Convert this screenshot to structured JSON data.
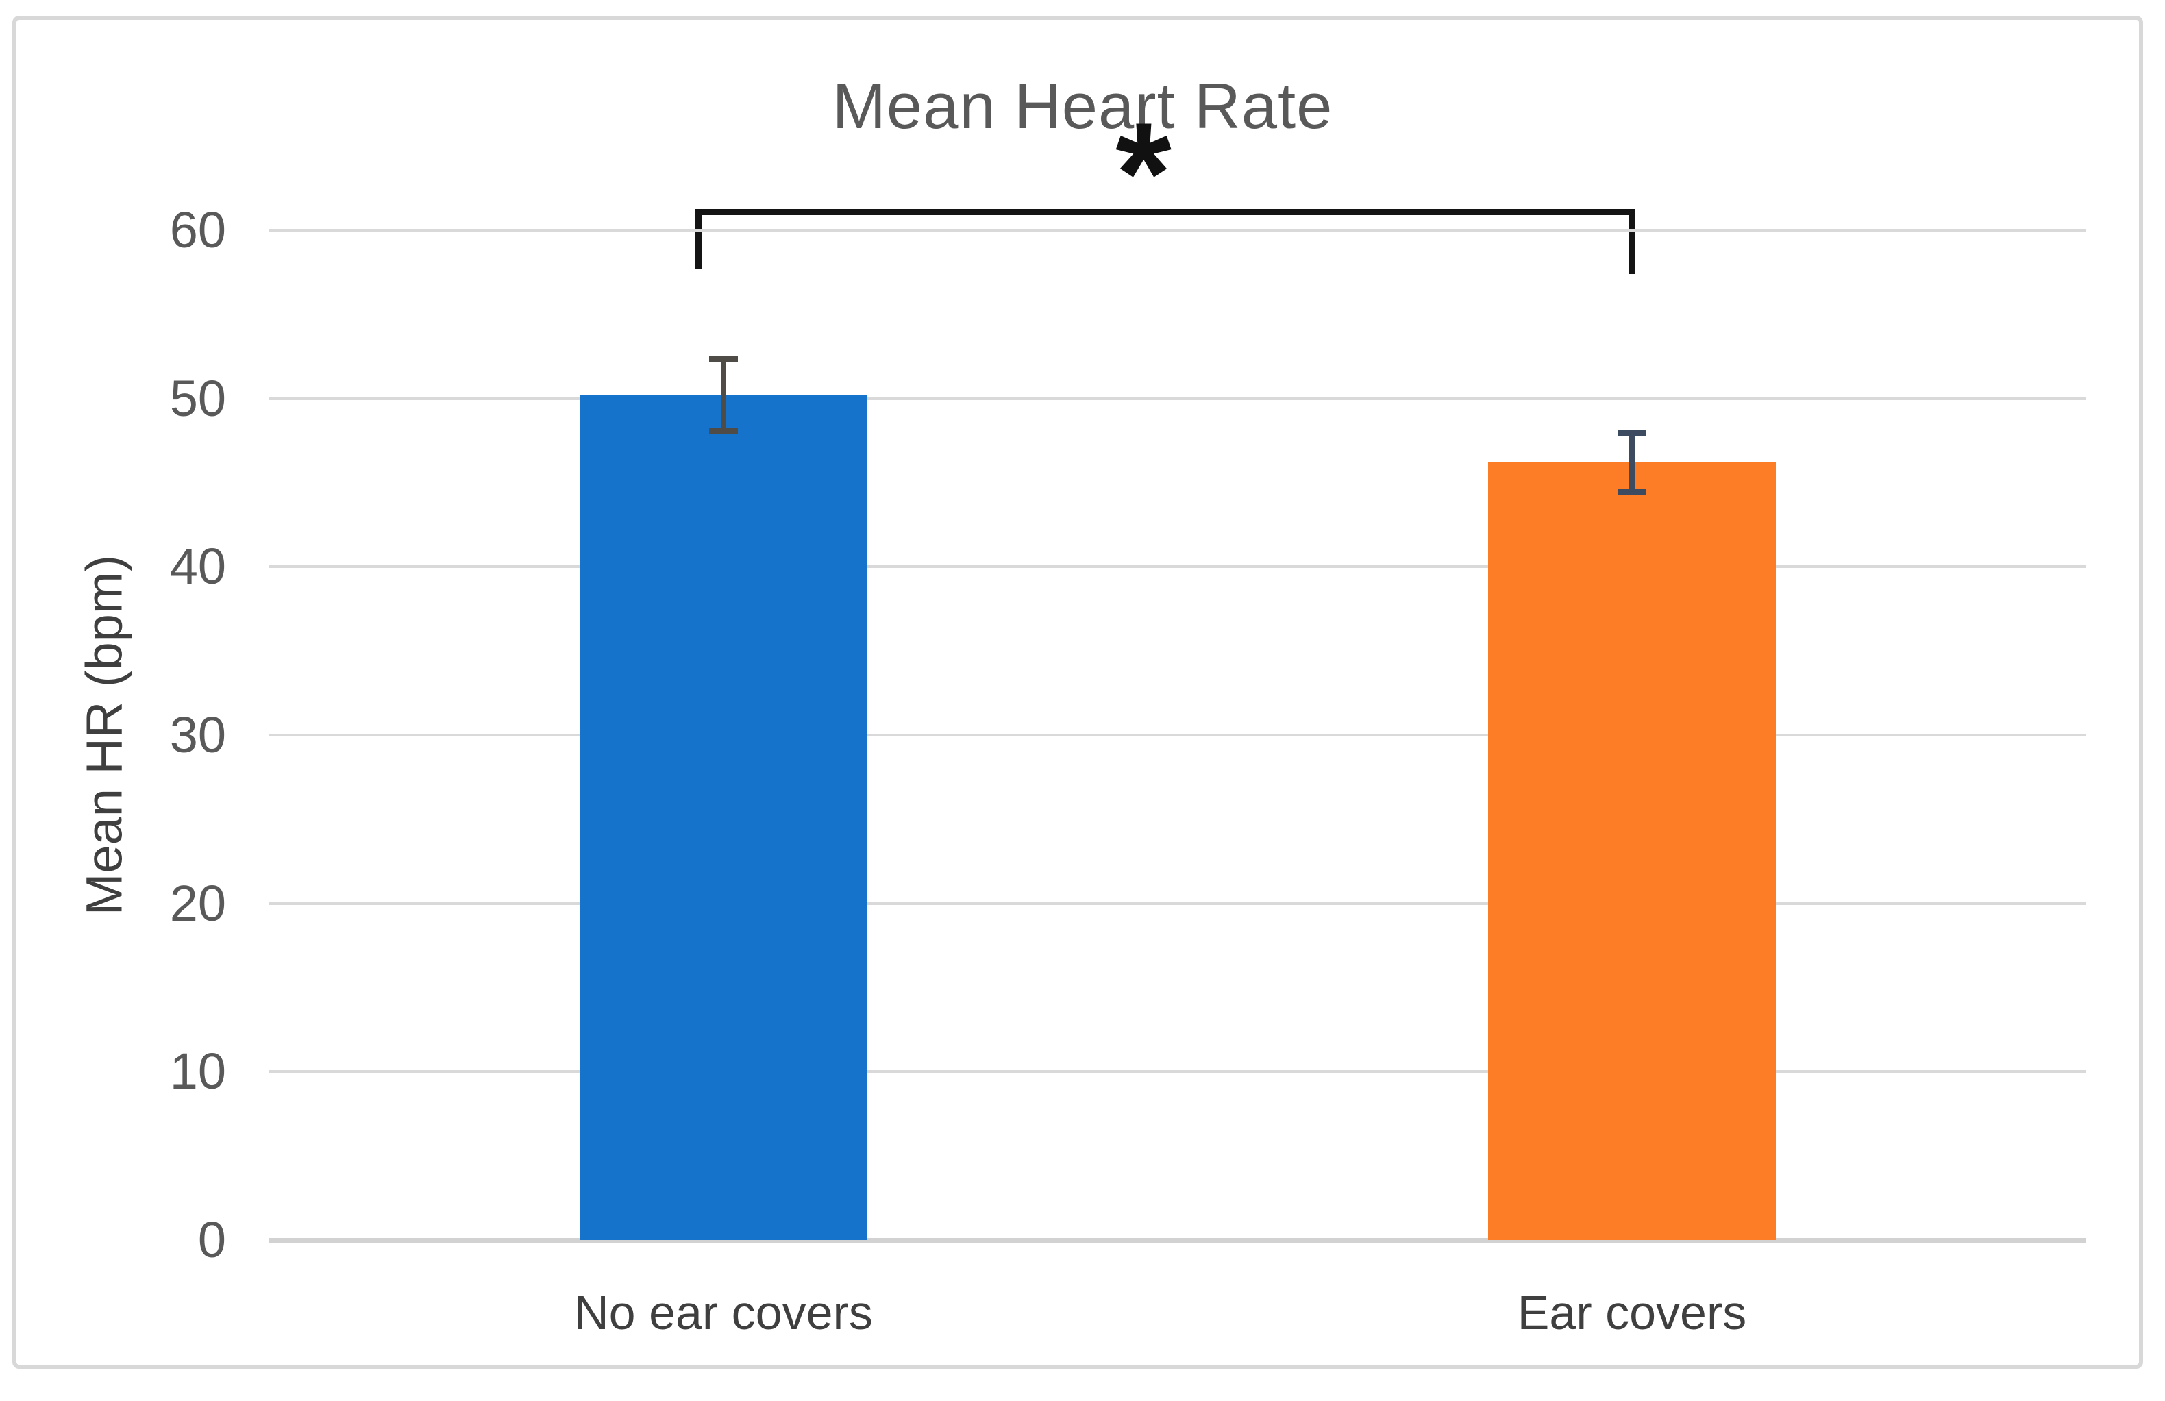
{
  "colors": {
    "bar_blue": "#1673cb",
    "bar_orange": "#fd7d26",
    "gridline": "#d9d9d9",
    "baseline": "#d2d2d2",
    "chart_border": "#d8d8d8",
    "title_text": "#595959",
    "tick_text": "#595959",
    "category_text": "#3f3f3f",
    "bracket": "#141414",
    "error_bar_blue_series": "#4f4b46",
    "error_bar_orange_series": "#3d4b60"
  },
  "chart_data": {
    "type": "bar",
    "title": "Mean Heart Rate",
    "xlabel": "",
    "ylabel": "Mean HR (bpm)",
    "categories": [
      "No ear covers",
      "Ear covers"
    ],
    "series": [
      {
        "name": "Mean HR",
        "values": [
          50.2,
          46.2
        ],
        "error_plus": [
          2.3,
          1.9
        ],
        "error_minus": [
          2.3,
          1.9
        ]
      }
    ],
    "bar_colors": [
      "#1673cb",
      "#fd7d26"
    ],
    "ylim": [
      0,
      60
    ],
    "yticks": [
      0,
      10,
      20,
      30,
      40,
      50,
      60
    ],
    "grid": true,
    "legend": "none",
    "annotations": {
      "significance": {
        "label": "*",
        "between": [
          "No ear covers",
          "Ear covers"
        ]
      }
    }
  }
}
